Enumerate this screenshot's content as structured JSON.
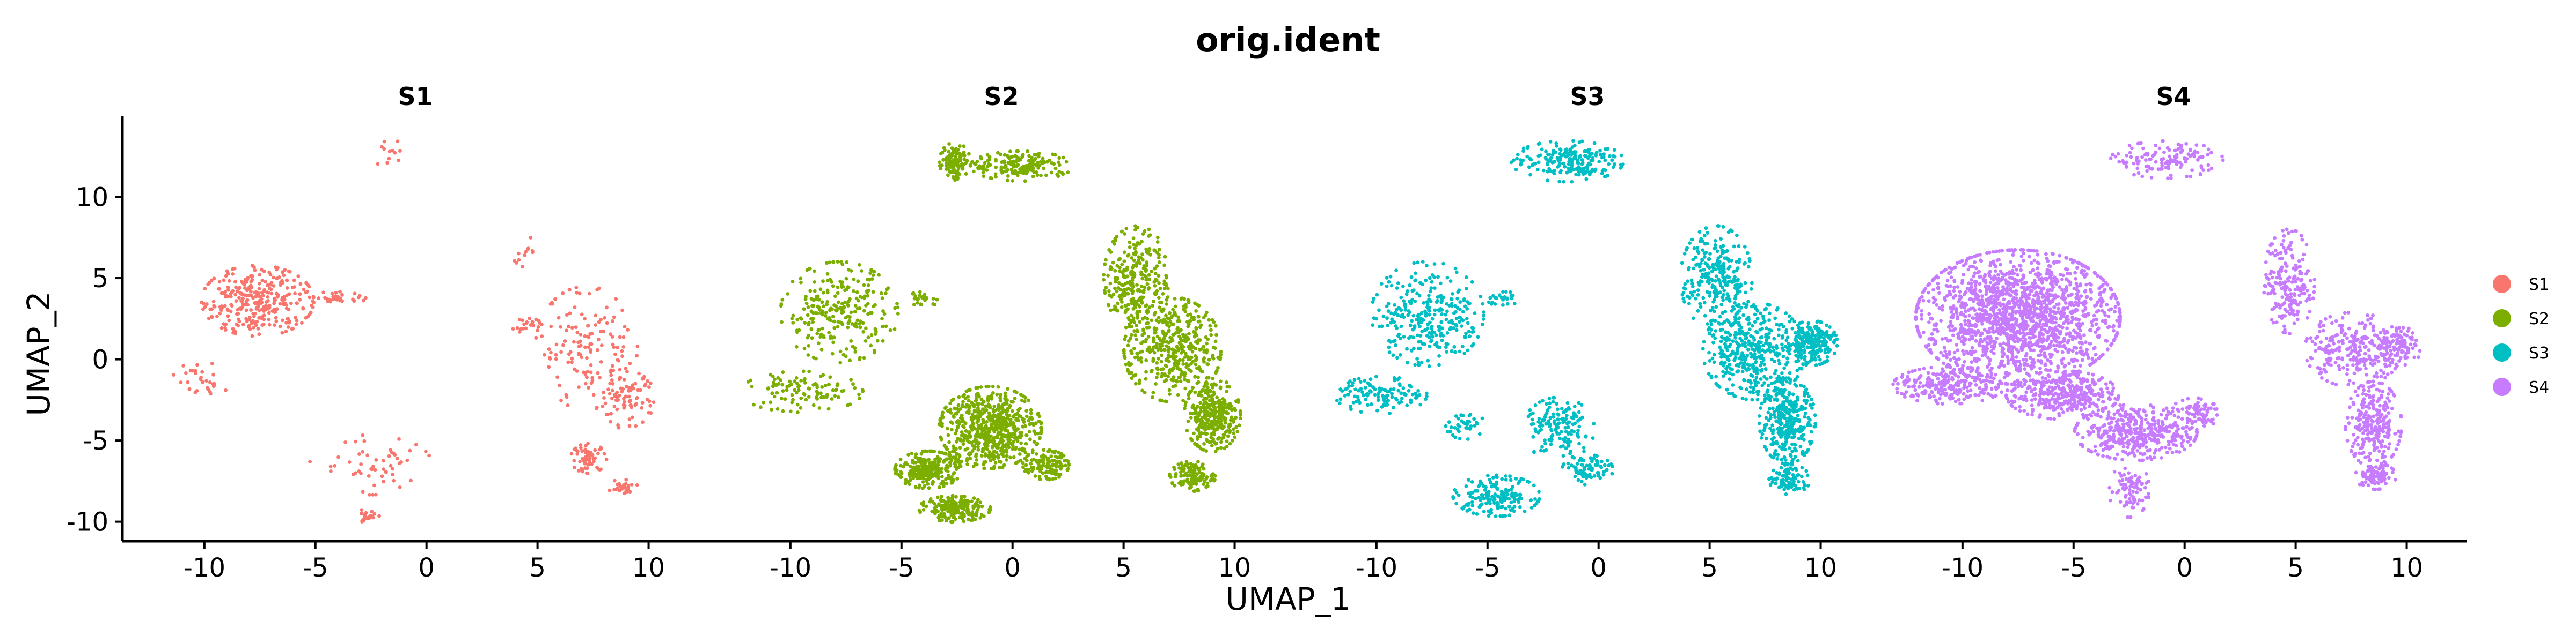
{
  "chart_data": {
    "type": "scatter",
    "title": "orig.ident",
    "xlabel": "UMAP_1",
    "ylabel": "UMAP_2",
    "xlim": [
      -13.5,
      12.5
    ],
    "ylim": [
      -11.2,
      15
    ],
    "xticks": [
      -10,
      -5,
      0,
      5,
      10
    ],
    "yticks": [
      -10,
      -5,
      0,
      5,
      10
    ],
    "xtick_labels": [
      "-10",
      "-5",
      "0",
      "5",
      "10"
    ],
    "ytick_labels": [
      "-10",
      "-5",
      "0",
      "5",
      "10"
    ],
    "grid": false,
    "legend_position": "right",
    "legend": [
      {
        "label": "S1",
        "color": "#F8766D"
      },
      {
        "label": "S2",
        "color": "#7CAE00"
      },
      {
        "label": "S3",
        "color": "#00BFC4"
      },
      {
        "label": "S4",
        "color": "#C77CFF"
      }
    ],
    "panels": [
      {
        "name": "S1",
        "color": "#F8766D",
        "clusters": [
          {
            "x": -1.5,
            "y": 12.7,
            "rx": 1.0,
            "ry": 0.8,
            "n": 12
          },
          {
            "x": -7.6,
            "y": 3.6,
            "rx": 2.2,
            "ry": 1.9,
            "n": 320
          },
          {
            "x": -10.2,
            "y": -1.4,
            "rx": 1.1,
            "ry": 1.1,
            "n": 30
          },
          {
            "x": -4.0,
            "y": 3.8,
            "rx": 1.1,
            "ry": 0.4,
            "n": 30
          },
          {
            "x": -2.5,
            "y": -6.5,
            "rx": 2.4,
            "ry": 1.6,
            "n": 55
          },
          {
            "x": -2.7,
            "y": -9.7,
            "rx": 0.5,
            "ry": 0.4,
            "n": 25
          },
          {
            "x": 4.5,
            "y": 6.6,
            "rx": 0.7,
            "ry": 0.8,
            "n": 12
          },
          {
            "x": 4.5,
            "y": 2.1,
            "rx": 0.6,
            "ry": 0.4,
            "n": 20
          },
          {
            "x": 7.2,
            "y": 0.7,
            "rx": 2.0,
            "ry": 3.3,
            "n": 140
          },
          {
            "x": 8.9,
            "y": -2.4,
            "rx": 1.2,
            "ry": 1.6,
            "n": 90
          },
          {
            "x": 7.3,
            "y": -6.1,
            "rx": 0.7,
            "ry": 0.8,
            "n": 60
          },
          {
            "x": 8.8,
            "y": -7.8,
            "rx": 0.6,
            "ry": 0.4,
            "n": 25
          }
        ]
      },
      {
        "name": "S2",
        "color": "#7CAE00",
        "clusters": [
          {
            "x": -2.6,
            "y": 12.2,
            "rx": 0.6,
            "ry": 1.0,
            "n": 110
          },
          {
            "x": 0.4,
            "y": 11.9,
            "rx": 2.0,
            "ry": 0.8,
            "n": 180
          },
          {
            "x": -7.8,
            "y": 2.9,
            "rx": 2.3,
            "ry": 2.7,
            "n": 260
          },
          {
            "x": -9.5,
            "y": -2.0,
            "rx": 2.4,
            "ry": 1.1,
            "n": 110
          },
          {
            "x": -4.0,
            "y": 3.7,
            "rx": 0.7,
            "ry": 0.4,
            "n": 25
          },
          {
            "x": -1.0,
            "y": -4.2,
            "rx": 2.0,
            "ry": 2.2,
            "n": 650
          },
          {
            "x": -3.8,
            "y": -6.8,
            "rx": 1.3,
            "ry": 1.0,
            "n": 260
          },
          {
            "x": -2.6,
            "y": -9.2,
            "rx": 1.4,
            "ry": 0.7,
            "n": 200
          },
          {
            "x": 1.5,
            "y": -6.5,
            "rx": 0.9,
            "ry": 0.8,
            "n": 120
          },
          {
            "x": 5.6,
            "y": 5.0,
            "rx": 1.3,
            "ry": 2.8,
            "n": 280
          },
          {
            "x": 7.2,
            "y": 0.6,
            "rx": 1.9,
            "ry": 2.8,
            "n": 420
          },
          {
            "x": 9.0,
            "y": -3.4,
            "rx": 1.1,
            "ry": 2.0,
            "n": 320
          },
          {
            "x": 8.1,
            "y": -7.2,
            "rx": 0.9,
            "ry": 0.8,
            "n": 120
          }
        ]
      },
      {
        "name": "S3",
        "color": "#00BFC4",
        "clusters": [
          {
            "x": -1.4,
            "y": 12.2,
            "rx": 2.2,
            "ry": 1.1,
            "n": 200
          },
          {
            "x": -7.7,
            "y": 2.8,
            "rx": 2.2,
            "ry": 2.8,
            "n": 300
          },
          {
            "x": -9.8,
            "y": -2.2,
            "rx": 1.8,
            "ry": 1.0,
            "n": 120
          },
          {
            "x": -6.0,
            "y": -4.0,
            "rx": 0.8,
            "ry": 0.8,
            "n": 40
          },
          {
            "x": -4.2,
            "y": 3.7,
            "rx": 0.7,
            "ry": 0.4,
            "n": 25
          },
          {
            "x": -1.8,
            "y": -4.3,
            "rx": 1.4,
            "ry": 1.7,
            "n": 150
          },
          {
            "x": -4.6,
            "y": -8.4,
            "rx": 1.7,
            "ry": 1.1,
            "n": 180
          },
          {
            "x": -0.5,
            "y": -6.8,
            "rx": 1.0,
            "ry": 0.8,
            "n": 80
          },
          {
            "x": 5.3,
            "y": 5.0,
            "rx": 1.4,
            "ry": 2.8,
            "n": 260
          },
          {
            "x": 7.0,
            "y": 0.5,
            "rx": 2.0,
            "ry": 2.6,
            "n": 420
          },
          {
            "x": 9.6,
            "y": 1.0,
            "rx": 1.0,
            "ry": 1.2,
            "n": 220
          },
          {
            "x": 8.5,
            "y": -3.8,
            "rx": 1.1,
            "ry": 2.3,
            "n": 320
          },
          {
            "x": 8.6,
            "y": -7.4,
            "rx": 0.8,
            "ry": 0.8,
            "n": 90
          }
        ]
      },
      {
        "name": "S4",
        "color": "#C77CFF",
        "clusters": [
          {
            "x": -0.8,
            "y": 12.3,
            "rx": 2.2,
            "ry": 1.0,
            "n": 140
          },
          {
            "x": -7.5,
            "y": 2.6,
            "rx": 4.0,
            "ry": 3.6,
            "n": 1700
          },
          {
            "x": -10.6,
            "y": -1.6,
            "rx": 2.2,
            "ry": 1.0,
            "n": 250
          },
          {
            "x": -5.5,
            "y": -2.2,
            "rx": 2.2,
            "ry": 1.3,
            "n": 350
          },
          {
            "x": -2.2,
            "y": -4.5,
            "rx": 2.4,
            "ry": 1.5,
            "n": 400
          },
          {
            "x": -2.5,
            "y": -8.0,
            "rx": 0.8,
            "ry": 1.5,
            "n": 80
          },
          {
            "x": 0.5,
            "y": -3.3,
            "rx": 1.0,
            "ry": 0.8,
            "n": 80
          },
          {
            "x": 4.7,
            "y": 4.8,
            "rx": 1.0,
            "ry": 2.8,
            "n": 200
          },
          {
            "x": 7.6,
            "y": 0.6,
            "rx": 1.9,
            "ry": 2.0,
            "n": 260
          },
          {
            "x": 9.8,
            "y": 0.8,
            "rx": 0.9,
            "ry": 1.0,
            "n": 90
          },
          {
            "x": 8.5,
            "y": -4.0,
            "rx": 1.1,
            "ry": 2.3,
            "n": 260
          },
          {
            "x": 8.6,
            "y": -7.2,
            "rx": 0.8,
            "ry": 0.7,
            "n": 80
          }
        ]
      }
    ]
  }
}
